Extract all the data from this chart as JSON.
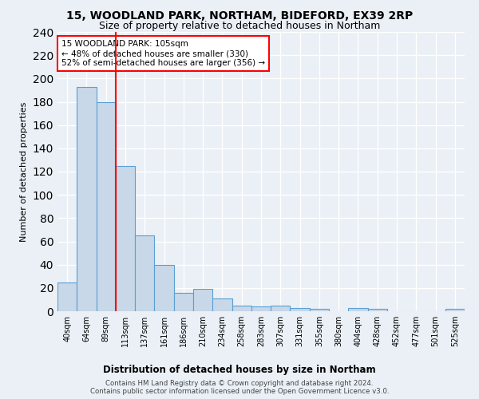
{
  "title1": "15, WOODLAND PARK, NORTHAM, BIDEFORD, EX39 2RP",
  "title2": "Size of property relative to detached houses in Northam",
  "xlabel": "Distribution of detached houses by size in Northam",
  "ylabel": "Number of detached properties",
  "categories": [
    "40sqm",
    "64sqm",
    "89sqm",
    "113sqm",
    "137sqm",
    "161sqm",
    "186sqm",
    "210sqm",
    "234sqm",
    "258sqm",
    "283sqm",
    "307sqm",
    "331sqm",
    "355sqm",
    "380sqm",
    "404sqm",
    "428sqm",
    "452sqm",
    "477sqm",
    "501sqm",
    "525sqm"
  ],
  "values": [
    25,
    193,
    180,
    125,
    65,
    40,
    16,
    19,
    11,
    5,
    4,
    5,
    3,
    2,
    0,
    3,
    2,
    0,
    0,
    0,
    2
  ],
  "bar_color": "#c8d8e8",
  "bar_edge_color": "#5a9fd4",
  "annotation_text": "15 WOODLAND PARK: 105sqm\n← 48% of detached houses are smaller (330)\n52% of semi-detached houses are larger (356) →",
  "annotation_box_color": "white",
  "annotation_box_edge_color": "red",
  "red_line_color": "red",
  "footer1": "Contains HM Land Registry data © Crown copyright and database right 2024.",
  "footer2": "Contains public sector information licensed under the Open Government Licence v3.0.",
  "ylim": [
    0,
    240
  ],
  "background_color": "#eaf0f6",
  "axes_background": "#eaf0f6",
  "grid_color": "white"
}
